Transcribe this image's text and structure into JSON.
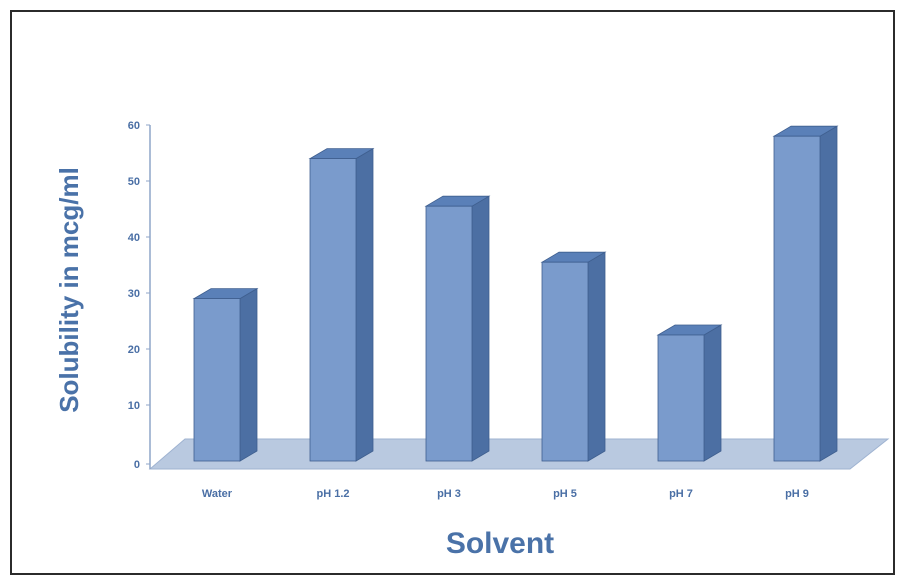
{
  "chart_data": {
    "type": "bar",
    "style": "3d-column",
    "categories": [
      "Water",
      "pH 1.2",
      "pH 3",
      "pH 5",
      "pH 7",
      "pH 9"
    ],
    "values": [
      29,
      54,
      45.5,
      35.5,
      22.5,
      58
    ],
    "xlabel": "Solvent",
    "ylabel": "Solubility in mcg/ml",
    "ylim": [
      0,
      60
    ],
    "yticks": [
      0,
      10,
      20,
      30,
      40,
      50,
      60
    ],
    "grid": false,
    "legend": "none",
    "colors": {
      "bar_front": "#7a9bcc",
      "bar_side": "#4c6fa3",
      "bar_top": "#5a80b8",
      "floor": "#b9c9e0",
      "text": "#4a72a8"
    }
  }
}
